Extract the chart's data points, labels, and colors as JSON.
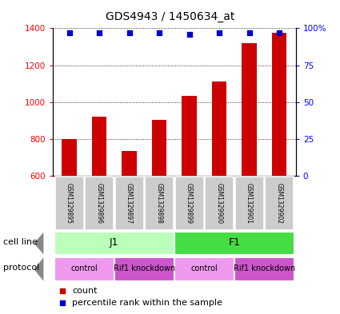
{
  "title": "GDS4943 / 1450634_at",
  "samples": [
    "GSM1329895",
    "GSM1329896",
    "GSM1329897",
    "GSM1329898",
    "GSM1329899",
    "GSM1329900",
    "GSM1329901",
    "GSM1329902"
  ],
  "bar_values": [
    800,
    920,
    735,
    905,
    1035,
    1110,
    1320,
    1375
  ],
  "dot_values": [
    97,
    97,
    97,
    97,
    96,
    97,
    97,
    97
  ],
  "bar_color": "#cc0000",
  "dot_color": "#0000cc",
  "ylim_left": [
    600,
    1400
  ],
  "ylim_right": [
    0,
    100
  ],
  "yticks_left": [
    600,
    800,
    1000,
    1200,
    1400
  ],
  "yticks_right": [
    0,
    25,
    50,
    75,
    100
  ],
  "ytick_labels_right": [
    "0",
    "25",
    "50",
    "75",
    "100%"
  ],
  "cell_line_groups": [
    {
      "label": "J1",
      "start": 0,
      "end": 3,
      "color": "#bbffbb"
    },
    {
      "label": "F1",
      "start": 4,
      "end": 7,
      "color": "#44dd44"
    }
  ],
  "protocol_groups": [
    {
      "label": "control",
      "start": 0,
      "end": 1,
      "color": "#ee99ee"
    },
    {
      "label": "Rif1 knockdown",
      "start": 2,
      "end": 3,
      "color": "#cc55cc"
    },
    {
      "label": "control",
      "start": 4,
      "end": 5,
      "color": "#ee99ee"
    },
    {
      "label": "Rif1 knockdown",
      "start": 6,
      "end": 7,
      "color": "#cc55cc"
    }
  ],
  "legend_count_color": "#cc0000",
  "legend_dot_color": "#0000cc",
  "sample_box_color": "#cccccc",
  "arrow_color": "#888888"
}
